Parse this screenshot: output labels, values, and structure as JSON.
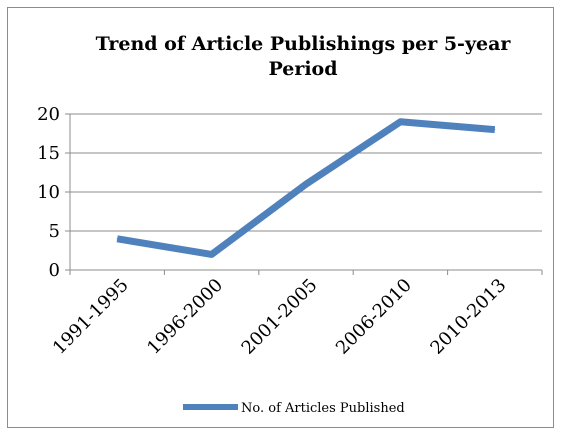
{
  "chart_data": {
    "type": "line",
    "title_lines": [
      "Trend of Article Publishings per 5-year",
      "Period"
    ],
    "categories": [
      "1991-1995",
      "1996-2000",
      "2001-2005",
      "2006-2010",
      "2010-2013"
    ],
    "series": [
      {
        "name": "No. of Articles Published",
        "values": [
          4,
          2,
          11,
          19,
          18
        ],
        "color": "#4f81bd"
      }
    ],
    "ylim": [
      0,
      20
    ],
    "yticks": [
      0,
      5,
      10,
      15,
      20
    ],
    "grid": true,
    "legend_position": "bottom"
  }
}
